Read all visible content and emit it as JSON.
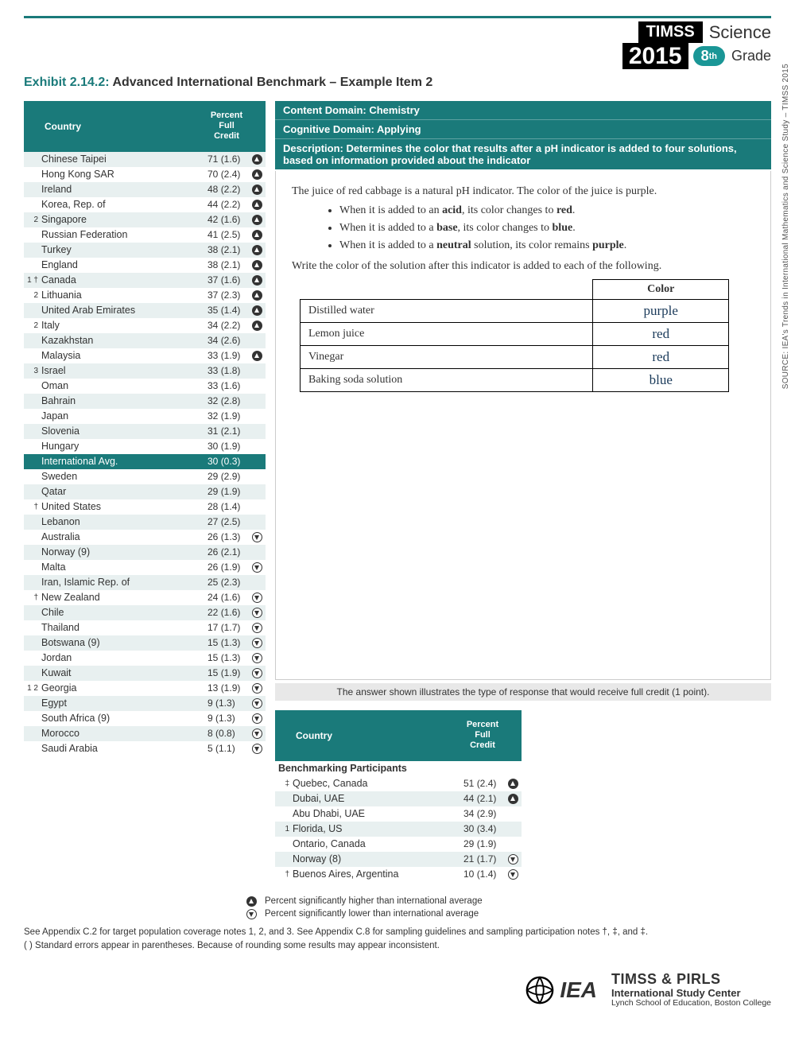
{
  "header": {
    "brand": "TIMSS",
    "year": "2015",
    "subject": "Science",
    "grade_num": "8",
    "grade_sup": "th",
    "grade_word": "Grade"
  },
  "exhibit": {
    "num": "Exhibit 2.14.2:",
    "title": "Advanced International Benchmark – Example Item 2"
  },
  "meta": {
    "domain": "Content Domain: Chemistry",
    "cognitive": "Cognitive Domain: Applying",
    "desc": "Description: Determines the color that results after a pH indicator is added to four solutions, based on information provided about the indicator"
  },
  "table": {
    "h_country": "Country",
    "h_pct": "Percent Full Credit",
    "rows": [
      {
        "n": "",
        "c": "Chinese Taipei",
        "v": "71",
        "se": "(1.6)",
        "i": "up"
      },
      {
        "n": "",
        "c": "Hong Kong SAR",
        "v": "70",
        "se": "(2.4)",
        "i": "up"
      },
      {
        "n": "",
        "c": "Ireland",
        "v": "48",
        "se": "(2.2)",
        "i": "up"
      },
      {
        "n": "",
        "c": "Korea, Rep. of",
        "v": "44",
        "se": "(2.2)",
        "i": "up"
      },
      {
        "n": "2",
        "c": "Singapore",
        "v": "42",
        "se": "(1.6)",
        "i": "up"
      },
      {
        "n": "",
        "c": "Russian Federation",
        "v": "41",
        "se": "(2.5)",
        "i": "up"
      },
      {
        "n": "",
        "c": "Turkey",
        "v": "38",
        "se": "(2.1)",
        "i": "up"
      },
      {
        "n": "",
        "c": "England",
        "v": "38",
        "se": "(2.1)",
        "i": "up"
      },
      {
        "n": "1 †",
        "c": "Canada",
        "v": "37",
        "se": "(1.6)",
        "i": "up"
      },
      {
        "n": "2",
        "c": "Lithuania",
        "v": "37",
        "se": "(2.3)",
        "i": "up"
      },
      {
        "n": "",
        "c": "United Arab Emirates",
        "v": "35",
        "se": "(1.4)",
        "i": "up"
      },
      {
        "n": "2",
        "c": "Italy",
        "v": "34",
        "se": "(2.2)",
        "i": "up"
      },
      {
        "n": "",
        "c": "Kazakhstan",
        "v": "34",
        "se": "(2.6)",
        "i": ""
      },
      {
        "n": "",
        "c": "Malaysia",
        "v": "33",
        "se": "(1.9)",
        "i": "up"
      },
      {
        "n": "3",
        "c": "Israel",
        "v": "33",
        "se": "(1.8)",
        "i": ""
      },
      {
        "n": "",
        "c": "Oman",
        "v": "33",
        "se": "(1.6)",
        "i": ""
      },
      {
        "n": "",
        "c": "Bahrain",
        "v": "32",
        "se": "(2.8)",
        "i": ""
      },
      {
        "n": "",
        "c": "Japan",
        "v": "32",
        "se": "(1.9)",
        "i": ""
      },
      {
        "n": "",
        "c": "Slovenia",
        "v": "31",
        "se": "(2.1)",
        "i": ""
      },
      {
        "n": "",
        "c": "Hungary",
        "v": "30",
        "se": "(1.9)",
        "i": ""
      },
      {
        "n": "",
        "c": "International Avg.",
        "v": "30",
        "se": "(0.3)",
        "i": "",
        "intl": true
      },
      {
        "n": "",
        "c": "Sweden",
        "v": "29",
        "se": "(2.9)",
        "i": ""
      },
      {
        "n": "",
        "c": "Qatar",
        "v": "29",
        "se": "(1.9)",
        "i": ""
      },
      {
        "n": "†",
        "c": "United States",
        "v": "28",
        "se": "(1.4)",
        "i": ""
      },
      {
        "n": "",
        "c": "Lebanon",
        "v": "27",
        "se": "(2.5)",
        "i": ""
      },
      {
        "n": "",
        "c": "Australia",
        "v": "26",
        "se": "(1.3)",
        "i": "dn"
      },
      {
        "n": "",
        "c": "Norway (9)",
        "v": "26",
        "se": "(2.1)",
        "i": ""
      },
      {
        "n": "",
        "c": "Malta",
        "v": "26",
        "se": "(1.9)",
        "i": "dn"
      },
      {
        "n": "",
        "c": "Iran, Islamic Rep. of",
        "v": "25",
        "se": "(2.3)",
        "i": ""
      },
      {
        "n": "†",
        "c": "New Zealand",
        "v": "24",
        "se": "(1.6)",
        "i": "dn"
      },
      {
        "n": "",
        "c": "Chile",
        "v": "22",
        "se": "(1.6)",
        "i": "dn"
      },
      {
        "n": "",
        "c": "Thailand",
        "v": "17",
        "se": "(1.7)",
        "i": "dn"
      },
      {
        "n": "",
        "c": "Botswana (9)",
        "v": "15",
        "se": "(1.3)",
        "i": "dn"
      },
      {
        "n": "",
        "c": "Jordan",
        "v": "15",
        "se": "(1.3)",
        "i": "dn"
      },
      {
        "n": "",
        "c": "Kuwait",
        "v": "15",
        "se": "(1.9)",
        "i": "dn"
      },
      {
        "n": "1 2",
        "c": "Georgia",
        "v": "13",
        "se": "(1.9)",
        "i": "dn"
      },
      {
        "n": "",
        "c": "Egypt",
        "v": "9",
        "se": "(1.3)",
        "i": "dn"
      },
      {
        "n": "",
        "c": "South Africa (9)",
        "v": "9",
        "se": "(1.3)",
        "i": "dn"
      },
      {
        "n": "",
        "c": "Morocco",
        "v": "8",
        "se": "(0.8)",
        "i": "dn"
      },
      {
        "n": "",
        "c": "Saudi Arabia",
        "v": "5",
        "se": "(1.1)",
        "i": "dn"
      }
    ]
  },
  "item": {
    "intro": "The juice of red cabbage is a natural pH indicator. The color of the juice is purple.",
    "b1a": "When it is added to an ",
    "b1b": "acid",
    "b1c": ", its color changes to ",
    "b1d": "red",
    "b1e": ".",
    "b2a": "When it is added to a ",
    "b2b": "base",
    "b2c": ", its color changes to ",
    "b2d": "blue",
    "b2e": ".",
    "b3a": "When it is added to a ",
    "b3b": "neutral",
    "b3c": " solution, its color remains ",
    "b3d": "purple",
    "b3e": ".",
    "prompt": "Write the color of the solution after this indicator is added to each of the following.",
    "col": "Color",
    "rows": [
      {
        "s": "Distilled water",
        "a": "purple"
      },
      {
        "s": "Lemon juice",
        "a": "red"
      },
      {
        "s": "Vinegar",
        "a": "red"
      },
      {
        "s": "Baking soda solution",
        "a": "blue"
      }
    ],
    "credit": "The answer shown illustrates the type of response that would receive full credit (1 point)."
  },
  "bench": {
    "h_country": "Country",
    "h_pct": "Percent Full Credit",
    "title": "Benchmarking Participants",
    "rows": [
      {
        "n": "‡",
        "c": "Quebec, Canada",
        "v": "51",
        "se": "(2.4)",
        "i": "up"
      },
      {
        "n": "",
        "c": "Dubai, UAE",
        "v": "44",
        "se": "(2.1)",
        "i": "up"
      },
      {
        "n": "",
        "c": "Abu Dhabi, UAE",
        "v": "34",
        "se": "(2.9)",
        "i": ""
      },
      {
        "n": "1",
        "c": "Florida, US",
        "v": "30",
        "se": "(3.4)",
        "i": ""
      },
      {
        "n": "",
        "c": "Ontario, Canada",
        "v": "29",
        "se": "(1.9)",
        "i": ""
      },
      {
        "n": "",
        "c": "Norway (8)",
        "v": "21",
        "se": "(1.7)",
        "i": "dn"
      },
      {
        "n": "†",
        "c": "Buenos Aires, Argentina",
        "v": "10",
        "se": "(1.4)",
        "i": "dn"
      }
    ]
  },
  "legend": {
    "up": "Percent significantly higher than international average",
    "dn": "Percent significantly lower than international average"
  },
  "footnotes": {
    "f1": "See Appendix C.2 for target population coverage notes 1, 2, and 3. See Appendix C.8 for sampling guidelines and sampling participation notes †, ‡, and ‡.",
    "f2": "( ) Standard errors appear in parentheses. Because of rounding some results may appear inconsistent."
  },
  "source": "SOURCE:  IEA's Trends in International Mathematics and Science Study – TIMSS 2015",
  "footer": {
    "iea": "IEA",
    "t1": "TIMSS & PIRLS",
    "t2": "International Study Center",
    "t3": "Lynch School of Education, Boston College"
  }
}
